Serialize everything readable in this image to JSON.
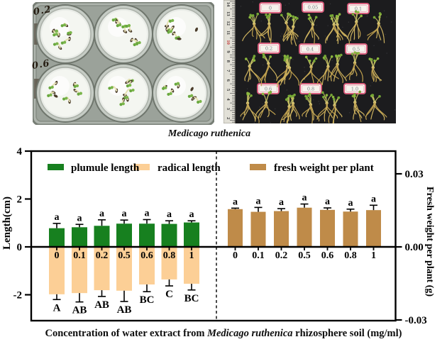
{
  "figure": {
    "caption": "Medicago ruthenica",
    "xaxis_title_parts": [
      "Concentration of water extract from ",
      "Medicago ruthenica",
      " rhizosphere soil (mg/ml)"
    ]
  },
  "photos": {
    "plate_photo": {
      "handwritten_labels": [
        "0.2",
        "0.6"
      ],
      "wells": 6
    },
    "seedling_photo": {
      "ruler_numbers": [
        "14",
        "13",
        "12",
        "11",
        "10",
        "9",
        "8",
        "7",
        "6",
        "5",
        "4",
        "3",
        "2"
      ],
      "ruler_red_number": "10",
      "tags": [
        "0",
        "0.05",
        "0.1",
        "0.2",
        "0.4",
        "0.5",
        "0.6",
        "0.8",
        "1.0"
      ]
    }
  },
  "chart_data": {
    "type": "bar",
    "categories": [
      "0",
      "0.1",
      "0.2",
      "0.5",
      "0.6",
      "0.8",
      "1"
    ],
    "left_axis": {
      "label": "Length(cm)",
      "ticks": [
        "4",
        "2",
        "0",
        "-2"
      ],
      "tick_values": [
        4,
        2,
        0,
        -2
      ],
      "range": [
        -3.1,
        4
      ]
    },
    "right_axis": {
      "label": "Fresh weight per plant (g)",
      "ticks": [
        "0.03",
        "0.00",
        "-0.03"
      ],
      "tick_values": [
        0.03,
        0,
        -0.03
      ],
      "range": [
        -0.031,
        0.0405
      ]
    },
    "grid": false,
    "legend_position": "top-inside",
    "legend": [
      {
        "label": "plumule length",
        "color": "#17801f"
      },
      {
        "label": "radical length",
        "color": "#fccf96"
      },
      {
        "label": "fresh weight per plant",
        "color": "#bf8b49"
      }
    ],
    "series": [
      {
        "name": "plumule length",
        "axis": "left",
        "color": "#17801f",
        "values": [
          0.78,
          0.82,
          0.88,
          0.97,
          0.97,
          0.96,
          1.02
        ],
        "errors": [
          0.2,
          0.12,
          0.25,
          0.15,
          0.17,
          0.13,
          0.07
        ],
        "point_labels": [
          "a",
          "a",
          "a",
          "a",
          "a",
          "a",
          "a"
        ]
      },
      {
        "name": "radical length",
        "axis": "left",
        "color": "#fccf96",
        "values": [
          -1.98,
          -1.93,
          -1.81,
          -1.83,
          -1.57,
          -1.36,
          -1.54
        ],
        "errors": [
          0.22,
          0.37,
          0.26,
          0.45,
          0.3,
          0.27,
          0.26
        ],
        "point_labels": [
          "A",
          "AB",
          "AB",
          "AB",
          "BC",
          "C",
          "BC"
        ]
      },
      {
        "name": "fresh weight per plant",
        "axis": "right",
        "color": "#bf8b49",
        "values": [
          0.0155,
          0.0144,
          0.0147,
          0.0161,
          0.0152,
          0.0145,
          0.0151
        ],
        "errors": [
          0.0004,
          0.0018,
          0.001,
          0.0015,
          0.0008,
          0.001,
          0.002
        ],
        "point_labels": [
          "a",
          "a",
          "a",
          "a",
          "a",
          "a",
          "a"
        ]
      }
    ]
  }
}
